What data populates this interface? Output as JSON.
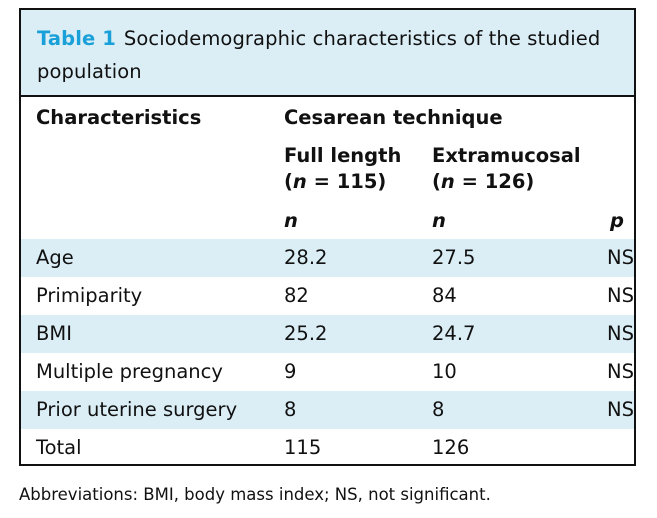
{
  "caption": {
    "label": "Table 1",
    "text": "Sociodemographic characteristics of the studied population"
  },
  "header": {
    "characteristics": "Characteristics",
    "group": "Cesarean technique",
    "col1_line1": "Full length",
    "col1_line2_open": "(",
    "col1_n_label": "n",
    "col1_line2_rest": " = 115)",
    "col2_line1": "Extramucosal",
    "col2_line2_open": "(",
    "col2_n_label": "n",
    "col2_line2_rest": " = 126)",
    "sub_col1": "n",
    "sub_col2": "n",
    "sub_p": "p"
  },
  "rows": [
    {
      "label": "Age",
      "full": "28.2",
      "extra": "27.5",
      "p": "NS"
    },
    {
      "label": "Primiparity",
      "full": "82",
      "extra": "84",
      "p": "NS"
    },
    {
      "label": "BMI",
      "full": "25.2",
      "extra": "24.7",
      "p": "NS"
    },
    {
      "label": "Multiple pregnancy",
      "full": "9",
      "extra": "10",
      "p": "NS"
    },
    {
      "label": "Prior uterine surgery",
      "full": "8",
      "extra": "8",
      "p": "NS"
    },
    {
      "label": "Total",
      "full": "115",
      "extra": "126",
      "p": ""
    }
  ],
  "footnote": "Abbreviations: BMI, body mass index; NS, not significant.",
  "colors": {
    "accent": "#1aa0d8",
    "shade": "#dbeef6",
    "border": "#111111"
  }
}
